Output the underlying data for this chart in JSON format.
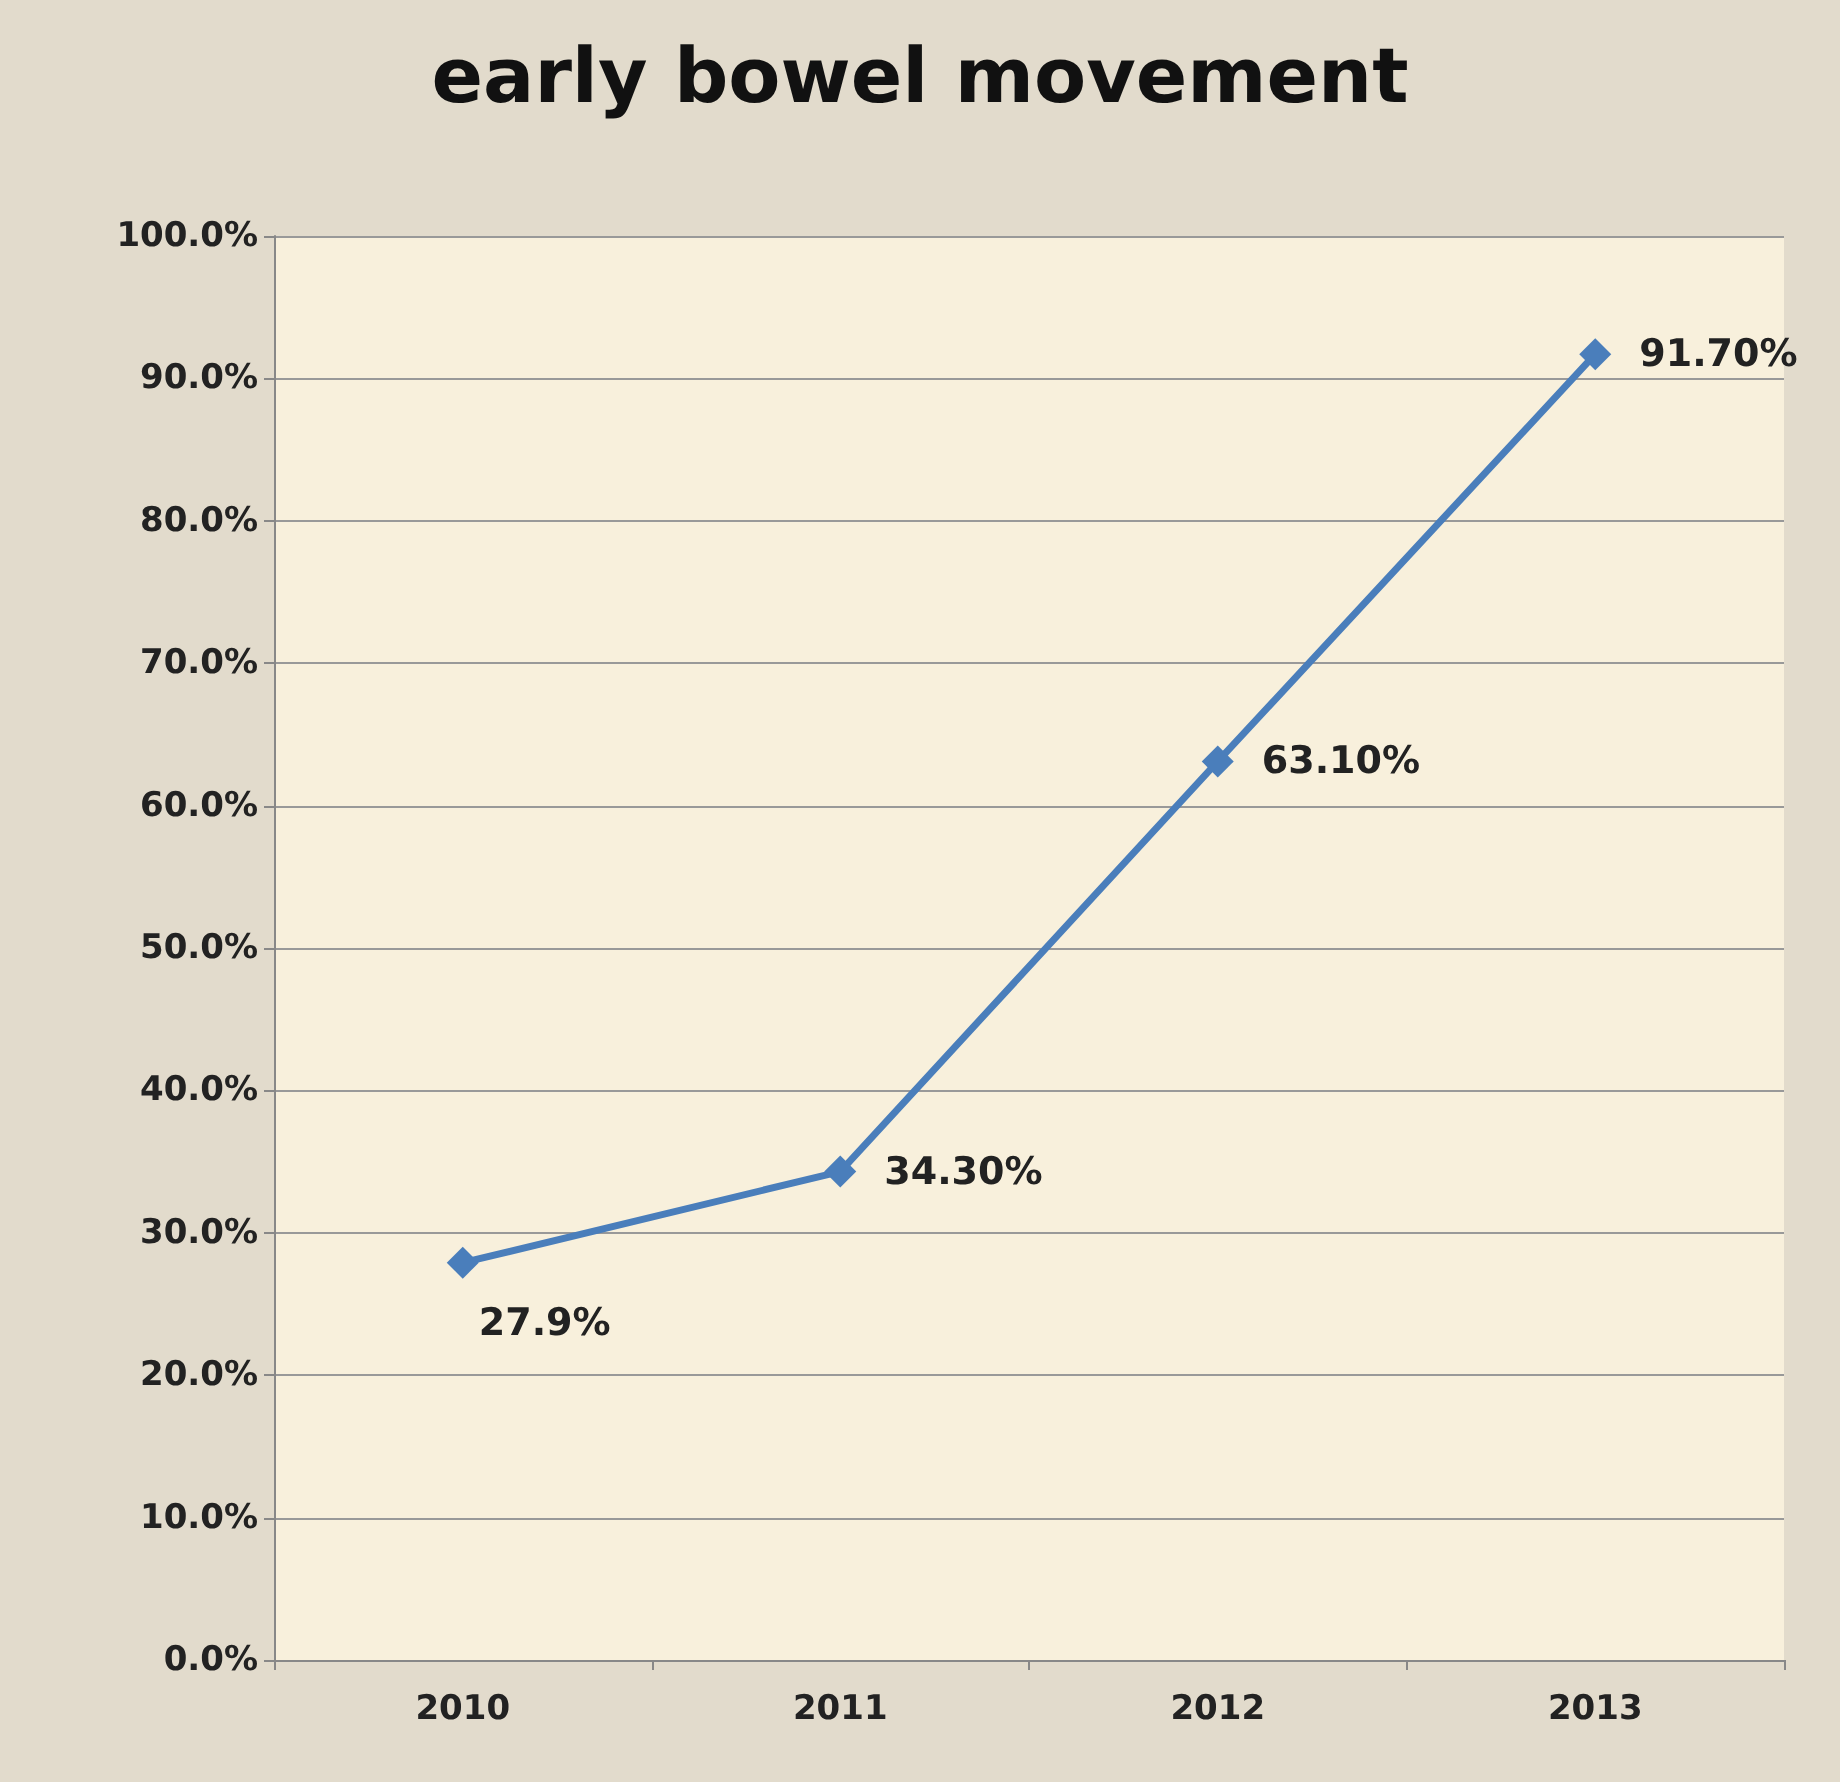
{
  "chart_data": {
    "type": "line",
    "title": "early bowel movement",
    "categories": [
      "2010",
      "2011",
      "2012",
      "2013"
    ],
    "series": [
      {
        "color": "#4a7ebb",
        "values": [
          27.9,
          34.3,
          63.1,
          91.7
        ],
        "value_labels": [
          "27.9%",
          "34.30%",
          "63.10%",
          "91.70%"
        ]
      }
    ],
    "ylim": [
      0,
      100
    ],
    "yticks": [
      {
        "value": 0,
        "label": "0.0%"
      },
      {
        "value": 10,
        "label": "10.0%"
      },
      {
        "value": 20,
        "label": "20.0%"
      },
      {
        "value": 30,
        "label": "30.0%"
      },
      {
        "value": 40,
        "label": "40.0%"
      },
      {
        "value": 50,
        "label": "50.0%"
      },
      {
        "value": 60,
        "label": "60.0%"
      },
      {
        "value": 70,
        "label": "70.0%"
      },
      {
        "value": 80,
        "label": "80.0%"
      },
      {
        "value": 90,
        "label": "90.0%"
      },
      {
        "value": 100,
        "label": "100.0%"
      }
    ],
    "grid": "y",
    "marker": "diamond",
    "line_style": "solid"
  }
}
